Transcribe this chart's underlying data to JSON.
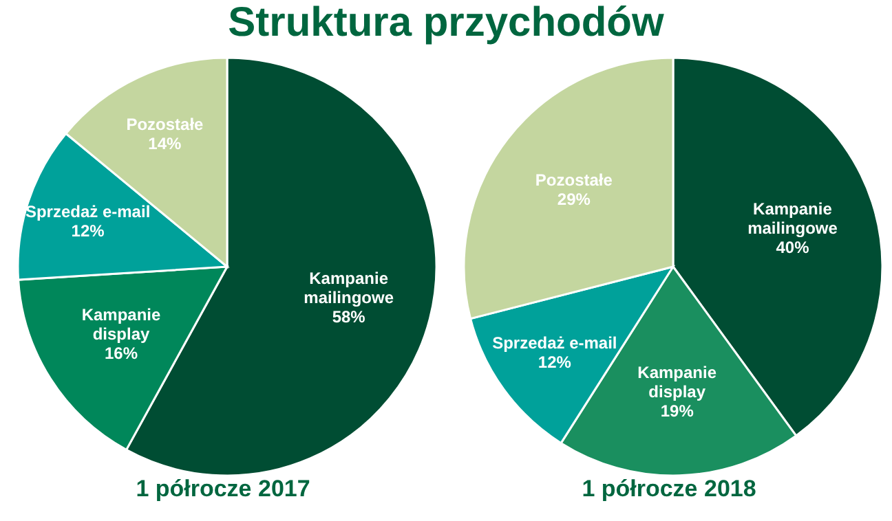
{
  "chart_data": [
    {
      "type": "pie",
      "title": "Struktura przychodów",
      "xlabel": "1 półrocze 2017",
      "categories": [
        "Kampanie mailingowe",
        "Kampanie display",
        "Sprzedaż e-mail",
        "Pozostałe"
      ],
      "values": [
        58,
        16,
        12,
        14
      ],
      "value_labels": [
        "58%",
        "16%",
        "12%",
        "14%"
      ],
      "colors": [
        "#004d33",
        "#00875a",
        "#00a19a",
        "#c4d69f"
      ]
    },
    {
      "type": "pie",
      "xlabel": "1 półrocze 2018",
      "categories": [
        "Kampanie mailingowe",
        "Kampanie display",
        "Sprzedaż e-mail",
        "Pozostałe"
      ],
      "values": [
        40,
        19,
        12,
        29
      ],
      "value_labels": [
        "40%",
        "19%",
        "12%",
        "29%"
      ],
      "colors": [
        "#004d33",
        "#1a8f5f",
        "#00a19a",
        "#c4d69f"
      ]
    }
  ]
}
